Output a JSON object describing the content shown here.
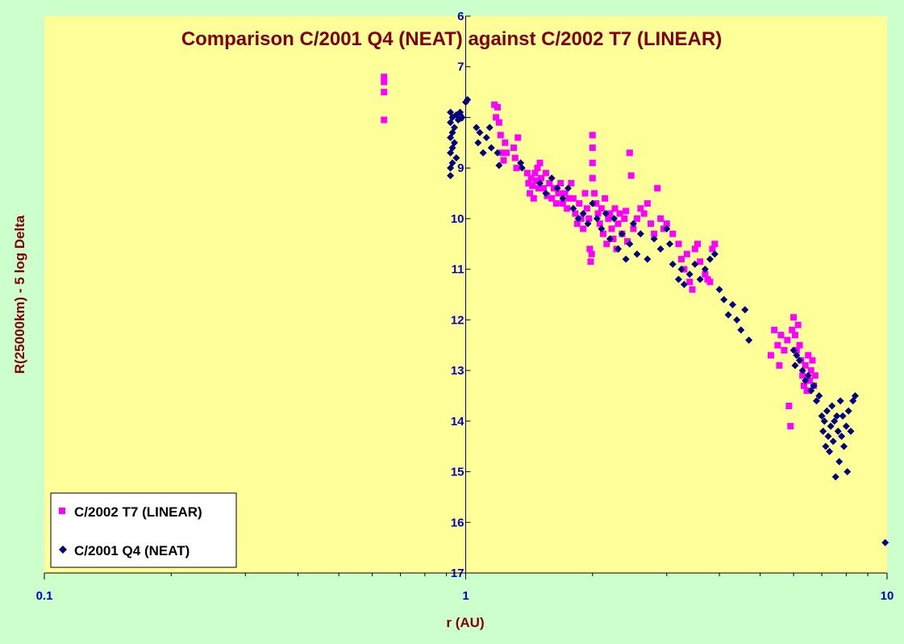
{
  "chart_data": {
    "type": "scatter",
    "title": "Comparison C/2001 Q4 (NEAT) against C/2002 T7 (LINEAR)",
    "xlabel": "r (AU)",
    "ylabel": "R(25000km) - 5 log Delta",
    "x_scale": "log",
    "xlim": [
      0.1,
      10
    ],
    "ylim": [
      6,
      17
    ],
    "y_inverted": true,
    "x_ticks": [
      "0.1",
      "1",
      "10"
    ],
    "y_ticks": [
      "6",
      "7",
      "8",
      "9",
      "10",
      "11",
      "12",
      "13",
      "14",
      "15",
      "16",
      "17"
    ],
    "grid": false,
    "legend_position": "bottom-left",
    "colors": {
      "plot_bg": "#ffff99",
      "page_bg": "#ccffcc",
      "title": "#800000",
      "ticks": "#0000cc"
    },
    "series": [
      {
        "name": "C/2002 T7 (LINEAR)",
        "marker": "square",
        "color": "#ff00ff",
        "points": [
          [
            0.64,
            7.2
          ],
          [
            0.64,
            7.3
          ],
          [
            0.64,
            7.5
          ],
          [
            0.64,
            8.05
          ],
          [
            1.17,
            7.75
          ],
          [
            1.18,
            8.0
          ],
          [
            1.19,
            7.8
          ],
          [
            1.2,
            8.1
          ],
          [
            1.21,
            8.35
          ],
          [
            1.22,
            8.7
          ],
          [
            1.23,
            8.85
          ],
          [
            1.24,
            8.5
          ],
          [
            1.25,
            8.7
          ],
          [
            1.3,
            8.6
          ],
          [
            1.31,
            8.8
          ],
          [
            1.32,
            9.0
          ],
          [
            1.33,
            8.4
          ],
          [
            1.4,
            9.1
          ],
          [
            1.41,
            9.3
          ],
          [
            1.42,
            9.5
          ],
          [
            1.43,
            9.2
          ],
          [
            1.44,
            9.35
          ],
          [
            1.45,
            9.6
          ],
          [
            1.46,
            9.1
          ],
          [
            1.47,
            9.25
          ],
          [
            1.48,
            9.0
          ],
          [
            1.49,
            9.4
          ],
          [
            1.5,
            8.9
          ],
          [
            1.51,
            9.2
          ],
          [
            1.53,
            9.4
          ],
          [
            1.55,
            9.1
          ],
          [
            1.56,
            9.55
          ],
          [
            1.58,
            9.3
          ],
          [
            1.6,
            9.6
          ],
          [
            1.62,
            9.4
          ],
          [
            1.64,
            9.7
          ],
          [
            1.66,
            9.5
          ],
          [
            1.68,
            9.3
          ],
          [
            1.7,
            9.7
          ],
          [
            1.72,
            9.5
          ],
          [
            1.74,
            9.8
          ],
          [
            1.76,
            9.6
          ],
          [
            1.78,
            9.3
          ],
          [
            1.8,
            9.6
          ],
          [
            1.82,
            9.9
          ],
          [
            1.84,
            10.1
          ],
          [
            1.86,
            9.7
          ],
          [
            1.88,
            10.0
          ],
          [
            1.9,
            10.2
          ],
          [
            1.92,
            9.5
          ],
          [
            1.94,
            9.8
          ],
          [
            1.96,
            10.0
          ],
          [
            1.97,
            10.6
          ],
          [
            1.98,
            10.85
          ],
          [
            1.99,
            10.7
          ],
          [
            2.0,
            9.2
          ],
          [
            2.0,
            8.9
          ],
          [
            2.0,
            8.35
          ],
          [
            2.0,
            8.6
          ],
          [
            2.02,
            9.5
          ],
          [
            2.04,
            9.7
          ],
          [
            2.06,
            9.9
          ],
          [
            2.08,
            10.1
          ],
          [
            2.1,
            9.8
          ],
          [
            2.12,
            10.3
          ],
          [
            2.14,
            9.6
          ],
          [
            2.16,
            10.5
          ],
          [
            2.18,
            10.0
          ],
          [
            2.2,
            9.9
          ],
          [
            2.22,
            10.2
          ],
          [
            2.24,
            10.4
          ],
          [
            2.26,
            9.8
          ],
          [
            2.28,
            10.6
          ],
          [
            2.3,
            10.1
          ],
          [
            2.32,
            9.9
          ],
          [
            2.35,
            10.3
          ],
          [
            2.38,
            10.0
          ],
          [
            2.4,
            9.85
          ],
          [
            2.42,
            10.45
          ],
          [
            2.45,
            8.7
          ],
          [
            2.47,
            9.15
          ],
          [
            2.5,
            10.2
          ],
          [
            2.55,
            10.0
          ],
          [
            2.6,
            9.8
          ],
          [
            2.65,
            9.9
          ],
          [
            2.7,
            9.7
          ],
          [
            2.75,
            10.1
          ],
          [
            2.8,
            10.3
          ],
          [
            2.85,
            9.4
          ],
          [
            2.9,
            10.0
          ],
          [
            2.95,
            10.2
          ],
          [
            3.0,
            10.1
          ],
          [
            3.1,
            10.3
          ],
          [
            3.2,
            10.5
          ],
          [
            3.25,
            10.8
          ],
          [
            3.3,
            11.0
          ],
          [
            3.35,
            10.7
          ],
          [
            3.4,
            11.25
          ],
          [
            3.45,
            11.4
          ],
          [
            3.5,
            10.6
          ],
          [
            3.55,
            10.5
          ],
          [
            3.6,
            10.85
          ],
          [
            3.7,
            11.1
          ],
          [
            3.75,
            11.2
          ],
          [
            3.8,
            11.25
          ],
          [
            3.85,
            10.6
          ],
          [
            3.9,
            10.5
          ],
          [
            5.3,
            12.7
          ],
          [
            5.4,
            12.2
          ],
          [
            5.5,
            12.5
          ],
          [
            5.55,
            12.9
          ],
          [
            5.6,
            12.3
          ],
          [
            5.7,
            12.6
          ],
          [
            5.8,
            12.4
          ],
          [
            5.85,
            13.7
          ],
          [
            5.9,
            14.1
          ],
          [
            5.95,
            12.2
          ],
          [
            6.0,
            11.95
          ],
          [
            6.05,
            12.3
          ],
          [
            6.1,
            12.6
          ],
          [
            6.15,
            12.1
          ],
          [
            6.2,
            12.5
          ],
          [
            6.25,
            12.8
          ],
          [
            6.3,
            13.1
          ],
          [
            6.35,
            13.3
          ],
          [
            6.4,
            12.9
          ],
          [
            6.45,
            13.4
          ],
          [
            6.5,
            12.7
          ],
          [
            6.55,
            13.2
          ],
          [
            6.6,
            13.0
          ],
          [
            6.65,
            12.8
          ],
          [
            6.7,
            13.3
          ],
          [
            6.75,
            13.1
          ]
        ]
      },
      {
        "name": "C/2001 Q4 (NEAT)",
        "marker": "diamond",
        "color": "#000080",
        "points": [
          [
            0.92,
            7.9
          ],
          [
            0.92,
            8.1
          ],
          [
            0.92,
            8.4
          ],
          [
            0.92,
            8.7
          ],
          [
            0.92,
            9.0
          ],
          [
            0.92,
            9.15
          ],
          [
            0.93,
            8.0
          ],
          [
            0.93,
            8.3
          ],
          [
            0.93,
            8.6
          ],
          [
            0.93,
            8.9
          ],
          [
            0.94,
            8.2
          ],
          [
            0.94,
            8.5
          ],
          [
            0.95,
            7.95
          ],
          [
            0.95,
            8.8
          ],
          [
            0.96,
            8.05
          ],
          [
            0.97,
            7.9
          ],
          [
            0.98,
            8.0
          ],
          [
            1.0,
            7.7
          ],
          [
            1.01,
            7.65
          ],
          [
            1.06,
            8.2
          ],
          [
            1.07,
            8.5
          ],
          [
            1.08,
            8.3
          ],
          [
            1.1,
            8.7
          ],
          [
            1.12,
            8.4
          ],
          [
            1.14,
            8.2
          ],
          [
            1.15,
            8.6
          ],
          [
            1.19,
            8.7
          ],
          [
            1.2,
            8.95
          ],
          [
            1.35,
            8.9
          ],
          [
            1.36,
            9.0
          ],
          [
            1.5,
            9.3
          ],
          [
            1.55,
            9.5
          ],
          [
            1.6,
            9.2
          ],
          [
            1.65,
            9.4
          ],
          [
            1.7,
            9.6
          ],
          [
            1.75,
            9.4
          ],
          [
            1.8,
            9.8
          ],
          [
            1.85,
            10.0
          ],
          [
            1.9,
            9.9
          ],
          [
            1.95,
            10.1
          ],
          [
            2.0,
            9.7
          ],
          [
            2.05,
            10.0
          ],
          [
            2.1,
            10.2
          ],
          [
            2.15,
            9.9
          ],
          [
            2.2,
            10.4
          ],
          [
            2.25,
            10.0
          ],
          [
            2.3,
            10.6
          ],
          [
            2.35,
            10.3
          ],
          [
            2.4,
            10.8
          ],
          [
            2.45,
            10.5
          ],
          [
            2.5,
            10.1
          ],
          [
            2.55,
            10.7
          ],
          [
            2.6,
            10.3
          ],
          [
            2.7,
            10.8
          ],
          [
            2.8,
            10.4
          ],
          [
            2.9,
            10.6
          ],
          [
            3.0,
            10.2
          ],
          [
            3.05,
            10.5
          ],
          [
            3.1,
            10.9
          ],
          [
            3.2,
            11.2
          ],
          [
            3.25,
            11.0
          ],
          [
            3.3,
            11.3
          ],
          [
            3.4,
            11.1
          ],
          [
            3.5,
            10.9
          ],
          [
            3.6,
            11.2
          ],
          [
            3.7,
            11.0
          ],
          [
            3.8,
            10.8
          ],
          [
            3.9,
            10.7
          ],
          [
            4.0,
            11.4
          ],
          [
            4.1,
            11.6
          ],
          [
            4.2,
            11.9
          ],
          [
            4.3,
            11.7
          ],
          [
            4.4,
            12.0
          ],
          [
            4.5,
            12.2
          ],
          [
            4.6,
            11.8
          ],
          [
            4.7,
            12.4
          ],
          [
            6.0,
            12.6
          ],
          [
            6.05,
            12.9
          ],
          [
            6.1,
            12.7
          ],
          [
            6.2,
            12.8
          ],
          [
            6.3,
            13.0
          ],
          [
            6.4,
            13.2
          ],
          [
            6.5,
            13.1
          ],
          [
            6.6,
            13.4
          ],
          [
            6.7,
            13.3
          ],
          [
            6.8,
            13.6
          ],
          [
            6.9,
            13.5
          ],
          [
            7.0,
            13.9
          ],
          [
            7.05,
            14.2
          ],
          [
            7.1,
            14.0
          ],
          [
            7.15,
            14.5
          ],
          [
            7.2,
            13.8
          ],
          [
            7.25,
            14.3
          ],
          [
            7.3,
            14.6
          ],
          [
            7.35,
            14.1
          ],
          [
            7.4,
            13.7
          ],
          [
            7.45,
            14.4
          ],
          [
            7.5,
            14.0
          ],
          [
            7.55,
            15.1
          ],
          [
            7.6,
            13.9
          ],
          [
            7.65,
            14.2
          ],
          [
            7.7,
            14.8
          ],
          [
            7.75,
            13.6
          ],
          [
            7.8,
            14.3
          ],
          [
            7.85,
            13.9
          ],
          [
            7.9,
            14.5
          ],
          [
            8.0,
            14.1
          ],
          [
            8.05,
            15.0
          ],
          [
            8.1,
            13.8
          ],
          [
            8.2,
            14.2
          ],
          [
            8.3,
            13.6
          ],
          [
            8.4,
            13.5
          ],
          [
            9.9,
            16.4
          ]
        ]
      }
    ]
  }
}
